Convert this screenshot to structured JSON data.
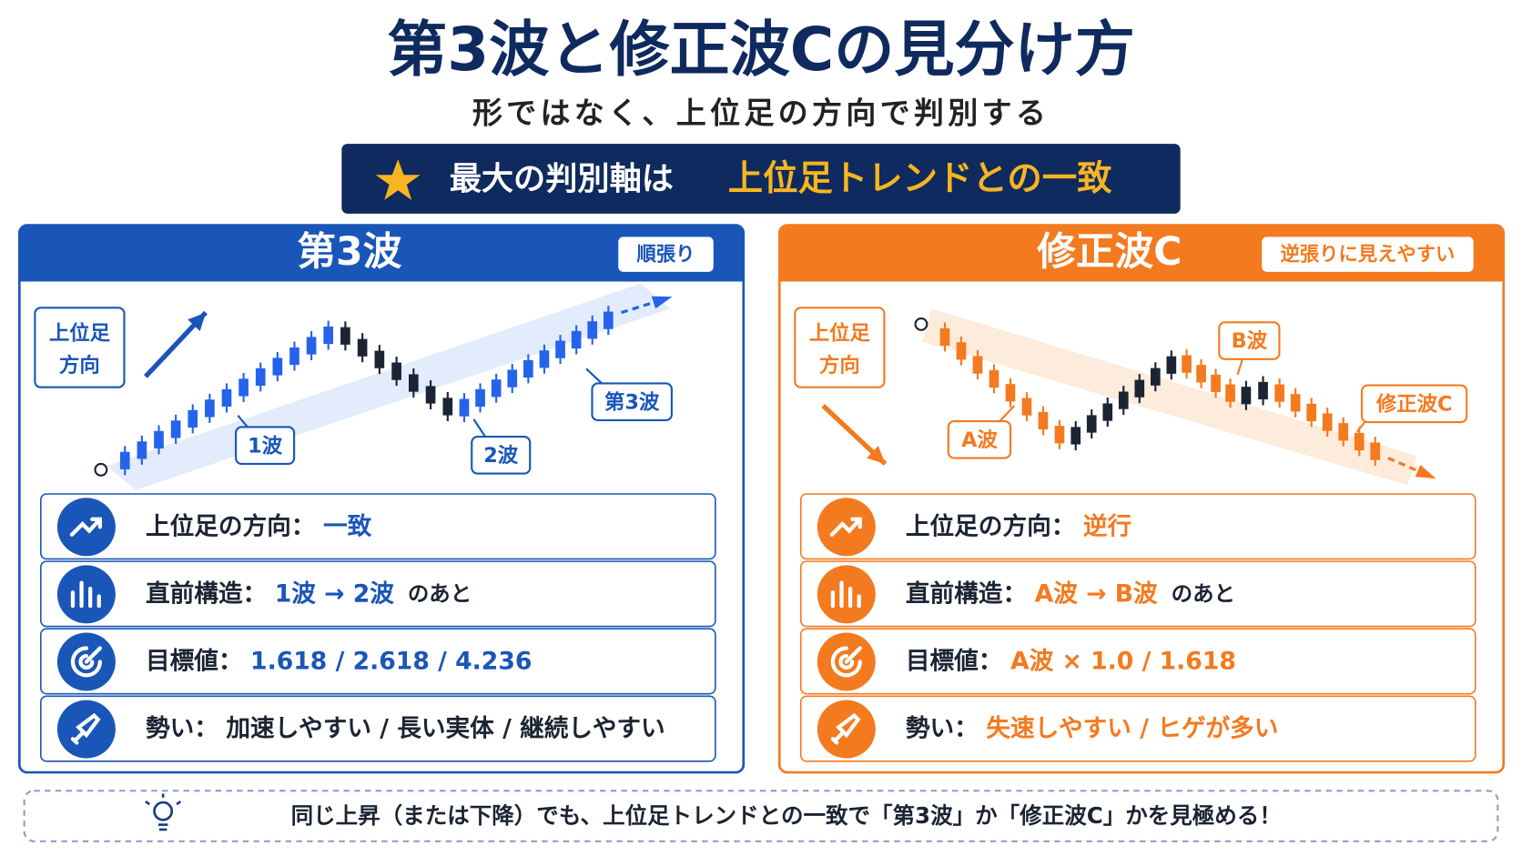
{
  "header": {
    "title": "第3波と修正波Cの見分け方",
    "subtitle": "形ではなく、上位足の方向で判別する"
  },
  "key": {
    "label": "最大の判別軸は",
    "highlight": "上位足トレンドとの一致"
  },
  "panels": [
    {
      "title": "第3波",
      "badge": "順張り",
      "higher_tf": [
        "上位足",
        "方向"
      ],
      "wave_labels": [
        "1波",
        "2波",
        "第3波"
      ],
      "rows": [
        {
          "label": "上位足の方向：",
          "value": "一致"
        },
        {
          "label": "直前構造：",
          "value": "1波 → 2波",
          "suffix": "のあと"
        },
        {
          "label": "目標値：",
          "value": "1.618 / 2.618 / 4.236"
        },
        {
          "label": "勢い：",
          "value": "加速しやすい / 長い実体 / 継続しやすい"
        }
      ]
    },
    {
      "title": "修正波C",
      "badge": "逆張りに見えやすい",
      "higher_tf": [
        "上位足",
        "方向"
      ],
      "wave_labels": [
        "A波",
        "B波",
        "修正波C"
      ],
      "rows": [
        {
          "label": "上位足の方向：",
          "value": "逆行"
        },
        {
          "label": "直前構造：",
          "value": "A波 → B波",
          "suffix": "のあと"
        },
        {
          "label": "目標値：",
          "value": "A波 × 1.0 / 1.618"
        },
        {
          "label": "勢い：",
          "value": "失速しやすい / ヒゲが多い"
        }
      ]
    }
  ],
  "footer": "同じ上昇（または下降）でも、上位足トレンドとの一致で「第3波」か「修正波C」かを見極める！"
}
